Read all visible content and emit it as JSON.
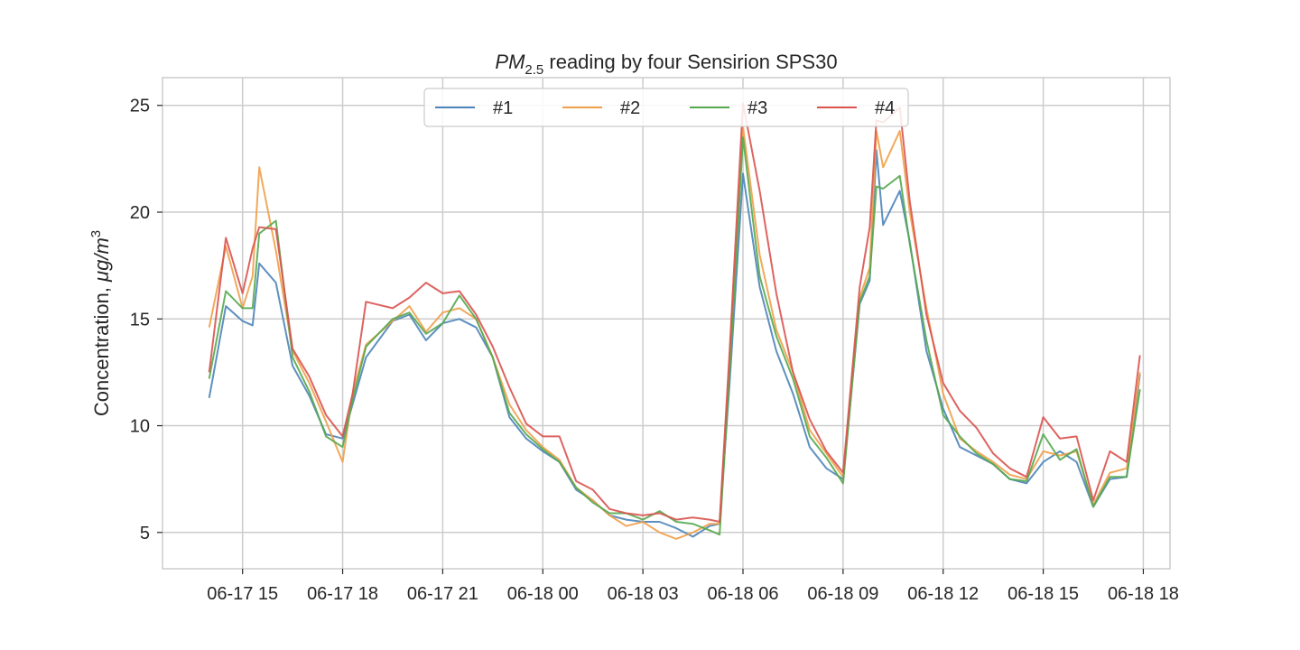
{
  "chart_data": {
    "type": "line",
    "title": "PM2.5 reading by four Sensirion SPS30",
    "title_parts": {
      "pm": "PM",
      "sub": "2.5",
      "rest": " reading by four Sensirion SPS30"
    },
    "xlabel": "",
    "ylabel": "Concentration, μg/m3",
    "ylabel_parts": {
      "text": "Concentration, ",
      "unit": "μg/m",
      "sup": "3"
    },
    "x_unit": "hours since 06-17 12:00",
    "xlim": [
      12.6,
      42.8
    ],
    "ylim": [
      3.3,
      26.3
    ],
    "x_ticks": [
      {
        "value": 15,
        "label": "06-17 15"
      },
      {
        "value": 18,
        "label": "06-17 18"
      },
      {
        "value": 21,
        "label": "06-17 21"
      },
      {
        "value": 24,
        "label": "06-18 00"
      },
      {
        "value": 27,
        "label": "06-18 03"
      },
      {
        "value": 30,
        "label": "06-18 06"
      },
      {
        "value": 33,
        "label": "06-18 09"
      },
      {
        "value": 36,
        "label": "06-18 12"
      },
      {
        "value": 39,
        "label": "06-18 15"
      },
      {
        "value": 42,
        "label": "06-18 18"
      }
    ],
    "y_ticks": [
      {
        "value": 5,
        "label": "5"
      },
      {
        "value": 10,
        "label": "10"
      },
      {
        "value": 15,
        "label": "15"
      },
      {
        "value": 20,
        "label": "20"
      },
      {
        "value": 25,
        "label": "25"
      }
    ],
    "grid": true,
    "legend_position": "top-center",
    "series": [
      {
        "name": "#1",
        "color": "#4c84b8",
        "points": [
          [
            14,
            11.3
          ],
          [
            14.5,
            15.6
          ],
          [
            15,
            14.9
          ],
          [
            15.3,
            14.7
          ],
          [
            15.5,
            17.6
          ],
          [
            16,
            16.7
          ],
          [
            16.5,
            12.8
          ],
          [
            17,
            11.4
          ],
          [
            17.5,
            9.6
          ],
          [
            18,
            9.4
          ],
          [
            18.3,
            11.0
          ],
          [
            18.7,
            13.2
          ],
          [
            19.5,
            14.9
          ],
          [
            20,
            15.2
          ],
          [
            20.5,
            14.0
          ],
          [
            21,
            14.8
          ],
          [
            21.5,
            15.0
          ],
          [
            22,
            14.6
          ],
          [
            22.5,
            13.2
          ],
          [
            23,
            10.4
          ],
          [
            23.5,
            9.4
          ],
          [
            24,
            8.8
          ],
          [
            24.5,
            8.3
          ],
          [
            25,
            7.0
          ],
          [
            25.5,
            6.5
          ],
          [
            26,
            5.8
          ],
          [
            26.5,
            5.6
          ],
          [
            27,
            5.5
          ],
          [
            27.5,
            5.5
          ],
          [
            28,
            5.2
          ],
          [
            28.5,
            4.8
          ],
          [
            29,
            5.3
          ],
          [
            29.3,
            5.4
          ],
          [
            29.6,
            12.0
          ],
          [
            30,
            21.8
          ],
          [
            30.5,
            16.5
          ],
          [
            31,
            13.5
          ],
          [
            31.5,
            11.5
          ],
          [
            32,
            9.0
          ],
          [
            32.5,
            8.0
          ],
          [
            33,
            7.5
          ],
          [
            33.5,
            15.7
          ],
          [
            33.8,
            16.8
          ],
          [
            34,
            22.9
          ],
          [
            34.2,
            19.4
          ],
          [
            34.7,
            21.0
          ],
          [
            35,
            18.6
          ],
          [
            35.5,
            13.5
          ],
          [
            36,
            10.8
          ],
          [
            36.5,
            9.0
          ],
          [
            37,
            8.6
          ],
          [
            37.5,
            8.2
          ],
          [
            38,
            7.5
          ],
          [
            38.5,
            7.3
          ],
          [
            39,
            8.3
          ],
          [
            39.5,
            8.8
          ],
          [
            40,
            8.3
          ],
          [
            40.5,
            6.2
          ],
          [
            41,
            7.5
          ],
          [
            41.5,
            7.6
          ],
          [
            41.9,
            12.4
          ]
        ]
      },
      {
        "name": "#2",
        "color": "#f0a04a",
        "points": [
          [
            14,
            14.6
          ],
          [
            14.5,
            18.4
          ],
          [
            15,
            15.5
          ],
          [
            15.3,
            17.0
          ],
          [
            15.5,
            22.1
          ],
          [
            16,
            18.2
          ],
          [
            16.5,
            13.5
          ],
          [
            17,
            12.0
          ],
          [
            17.5,
            10.2
          ],
          [
            18,
            8.3
          ],
          [
            18.3,
            11.5
          ],
          [
            18.7,
            13.8
          ],
          [
            19.5,
            14.9
          ],
          [
            20,
            15.6
          ],
          [
            20.5,
            14.4
          ],
          [
            21,
            15.3
          ],
          [
            21.5,
            15.5
          ],
          [
            22,
            15.0
          ],
          [
            22.5,
            13.2
          ],
          [
            23,
            11.0
          ],
          [
            23.5,
            9.8
          ],
          [
            24,
            9.0
          ],
          [
            24.5,
            8.4
          ],
          [
            25,
            7.1
          ],
          [
            25.5,
            6.5
          ],
          [
            26,
            5.8
          ],
          [
            26.5,
            5.3
          ],
          [
            27,
            5.5
          ],
          [
            27.5,
            5.0
          ],
          [
            28,
            4.7
          ],
          [
            28.5,
            5.0
          ],
          [
            29,
            5.4
          ],
          [
            29.3,
            5.4
          ],
          [
            29.6,
            13.0
          ],
          [
            30,
            24.0
          ],
          [
            30.5,
            18.0
          ],
          [
            31,
            14.5
          ],
          [
            31.5,
            12.5
          ],
          [
            32,
            9.8
          ],
          [
            32.5,
            8.7
          ],
          [
            33,
            7.6
          ],
          [
            33.5,
            16.0
          ],
          [
            33.8,
            17.4
          ],
          [
            34,
            23.8
          ],
          [
            34.2,
            22.1
          ],
          [
            34.7,
            23.8
          ],
          [
            35,
            20.0
          ],
          [
            35.5,
            15.5
          ],
          [
            36,
            11.5
          ],
          [
            36.5,
            9.4
          ],
          [
            37,
            8.8
          ],
          [
            37.5,
            8.3
          ],
          [
            38,
            7.7
          ],
          [
            38.5,
            7.5
          ],
          [
            39,
            8.8
          ],
          [
            39.5,
            8.6
          ],
          [
            40,
            8.8
          ],
          [
            40.5,
            6.3
          ],
          [
            41,
            7.8
          ],
          [
            41.5,
            8.0
          ],
          [
            41.9,
            12.5
          ]
        ]
      },
      {
        "name": "#3",
        "color": "#55a84e",
        "points": [
          [
            14,
            12.2
          ],
          [
            14.5,
            16.3
          ],
          [
            15,
            15.5
          ],
          [
            15.3,
            15.5
          ],
          [
            15.5,
            19.0
          ],
          [
            16,
            19.6
          ],
          [
            16.5,
            13.2
          ],
          [
            17,
            11.6
          ],
          [
            17.5,
            9.5
          ],
          [
            18,
            9.0
          ],
          [
            18.3,
            11.2
          ],
          [
            18.7,
            13.7
          ],
          [
            19.5,
            15.0
          ],
          [
            20,
            15.3
          ],
          [
            20.5,
            14.3
          ],
          [
            21,
            14.8
          ],
          [
            21.5,
            16.1
          ],
          [
            22,
            15.0
          ],
          [
            22.5,
            13.2
          ],
          [
            23,
            10.6
          ],
          [
            23.5,
            9.6
          ],
          [
            24,
            8.9
          ],
          [
            24.5,
            8.3
          ],
          [
            25,
            7.1
          ],
          [
            25.5,
            6.4
          ],
          [
            26,
            5.9
          ],
          [
            26.5,
            5.9
          ],
          [
            27,
            5.6
          ],
          [
            27.5,
            6.0
          ],
          [
            28,
            5.5
          ],
          [
            28.5,
            5.4
          ],
          [
            29,
            5.1
          ],
          [
            29.3,
            4.9
          ],
          [
            29.6,
            12.5
          ],
          [
            30,
            23.5
          ],
          [
            30.5,
            17.0
          ],
          [
            31,
            14.2
          ],
          [
            31.5,
            12.2
          ],
          [
            32,
            9.5
          ],
          [
            32.5,
            8.5
          ],
          [
            33,
            7.3
          ],
          [
            33.5,
            15.8
          ],
          [
            33.8,
            17.0
          ],
          [
            34,
            21.2
          ],
          [
            34.2,
            21.1
          ],
          [
            34.7,
            21.7
          ],
          [
            35,
            18.5
          ],
          [
            35.5,
            14.0
          ],
          [
            36,
            10.5
          ],
          [
            36.5,
            9.5
          ],
          [
            37,
            8.7
          ],
          [
            37.5,
            8.2
          ],
          [
            38,
            7.5
          ],
          [
            38.5,
            7.4
          ],
          [
            39,
            9.6
          ],
          [
            39.5,
            8.4
          ],
          [
            40,
            8.9
          ],
          [
            40.5,
            6.2
          ],
          [
            41,
            7.6
          ],
          [
            41.5,
            7.6
          ],
          [
            41.9,
            11.7
          ]
        ]
      },
      {
        "name": "#4",
        "color": "#d9534f",
        "points": [
          [
            14,
            12.5
          ],
          [
            14.5,
            18.8
          ],
          [
            15,
            16.2
          ],
          [
            15.3,
            18.3
          ],
          [
            15.5,
            19.3
          ],
          [
            16,
            19.2
          ],
          [
            16.5,
            13.6
          ],
          [
            17,
            12.3
          ],
          [
            17.5,
            10.5
          ],
          [
            18,
            9.5
          ],
          [
            18.3,
            11.5
          ],
          [
            18.7,
            15.8
          ],
          [
            19.5,
            15.5
          ],
          [
            20,
            16.0
          ],
          [
            20.5,
            16.7
          ],
          [
            21,
            16.2
          ],
          [
            21.5,
            16.3
          ],
          [
            22,
            15.2
          ],
          [
            22.5,
            13.7
          ],
          [
            23,
            11.8
          ],
          [
            23.5,
            10.1
          ],
          [
            24,
            9.5
          ],
          [
            24.5,
            9.5
          ],
          [
            25,
            7.4
          ],
          [
            25.5,
            7.0
          ],
          [
            26,
            6.1
          ],
          [
            26.5,
            5.9
          ],
          [
            27,
            5.8
          ],
          [
            27.5,
            5.9
          ],
          [
            28,
            5.6
          ],
          [
            28.5,
            5.7
          ],
          [
            29,
            5.6
          ],
          [
            29.3,
            5.5
          ],
          [
            29.6,
            13.5
          ],
          [
            30,
            25.1
          ],
          [
            30.5,
            21.0
          ],
          [
            31,
            16.2
          ],
          [
            31.5,
            12.5
          ],
          [
            32,
            10.3
          ],
          [
            32.5,
            8.8
          ],
          [
            33,
            7.8
          ],
          [
            33.5,
            16.5
          ],
          [
            33.8,
            19.3
          ],
          [
            34,
            24.3
          ],
          [
            34.2,
            24.2
          ],
          [
            34.7,
            24.9
          ],
          [
            35,
            20.5
          ],
          [
            35.5,
            15.2
          ],
          [
            36,
            12.0
          ],
          [
            36.5,
            10.7
          ],
          [
            37,
            9.9
          ],
          [
            37.5,
            8.7
          ],
          [
            38,
            8.0
          ],
          [
            38.5,
            7.6
          ],
          [
            39,
            10.4
          ],
          [
            39.5,
            9.4
          ],
          [
            40,
            9.5
          ],
          [
            40.5,
            6.5
          ],
          [
            41,
            8.8
          ],
          [
            41.5,
            8.3
          ],
          [
            41.9,
            13.3
          ]
        ]
      }
    ]
  }
}
